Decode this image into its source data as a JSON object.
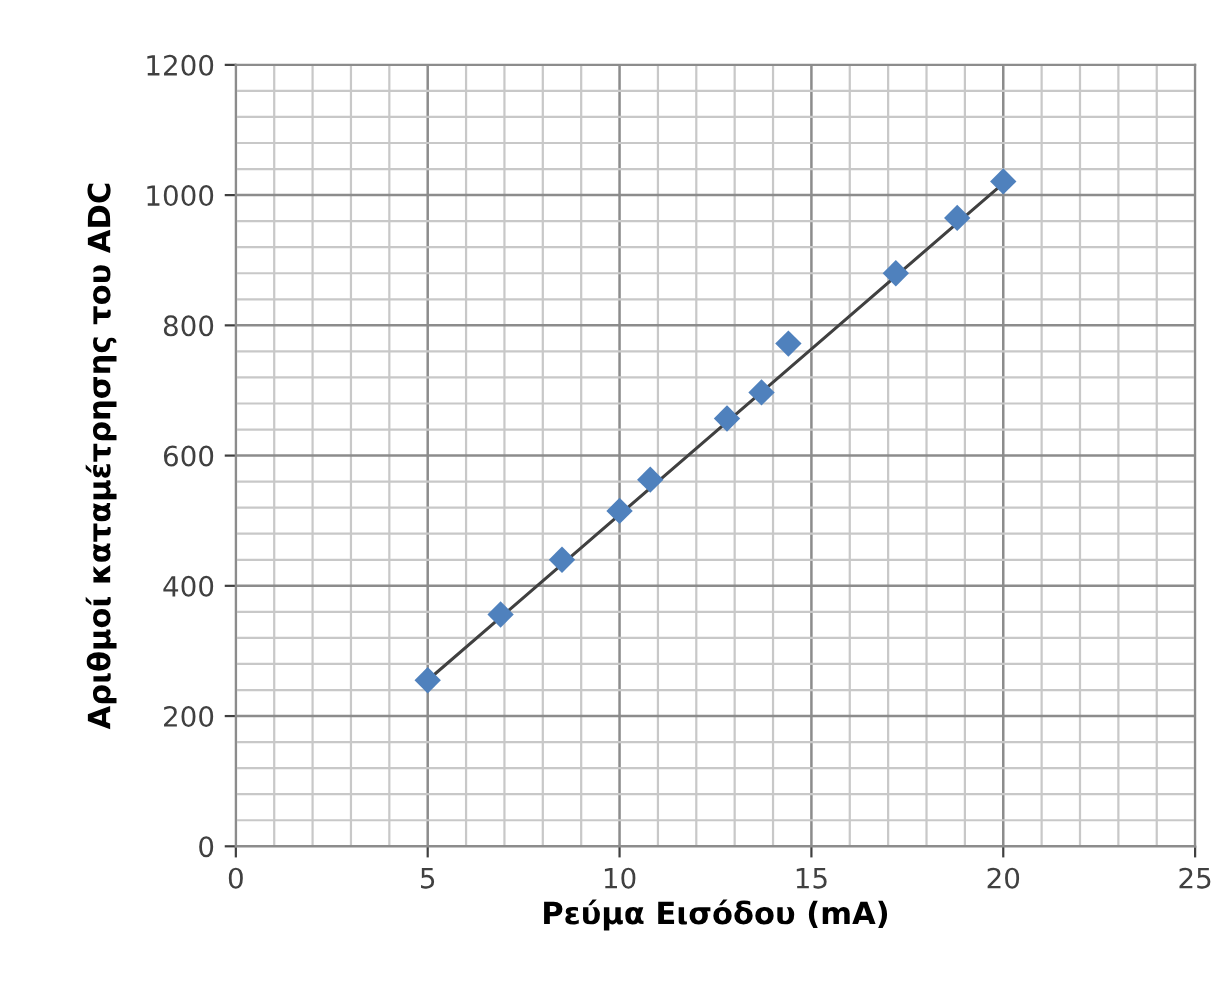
{
  "chart_data": {
    "type": "scatter",
    "xlabel": "Ρεύμα Εισόδου (mA)",
    "ylabel": "Αριθμοί καταμέτρησης του ADC",
    "series": [
      {
        "color": "#4f81bd",
        "marker": "diamond",
        "x": [
          5.0,
          6.9,
          8.5,
          10.0,
          10.8,
          12.8,
          13.7,
          14.4,
          17.2,
          18.8,
          20.0
        ],
        "values": [
          255,
          356,
          440,
          515,
          563,
          657,
          697,
          772,
          880,
          965,
          1021
        ]
      },
      {
        "type": "line",
        "color": "#404040",
        "marker": "none",
        "x": [
          5,
          20
        ],
        "values": [
          255,
          1018
        ]
      }
    ],
    "xlim": [
      0,
      25
    ],
    "xticks": [
      0,
      5,
      10,
      15,
      20,
      25
    ],
    "ylim": [
      0,
      1200
    ],
    "yticks": [
      0,
      200,
      400,
      600,
      800,
      1000,
      1200
    ],
    "grid": true
  }
}
